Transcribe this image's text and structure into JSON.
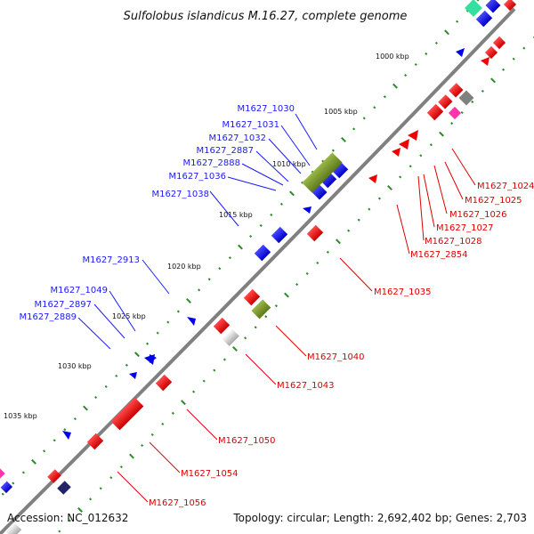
{
  "title": "Sulfolobus islandicus M.16.27, complete genome",
  "footer": {
    "accession": "Accession: NC_012632",
    "summary": "Topology: circular; Length: 2,692,402 bp; Genes: 2,703"
  },
  "scale_labels": [
    "1000 kbp",
    "1005 kbp",
    "1010 kbp",
    "1015 kbp",
    "1020 kbp",
    "1025 kbp",
    "1030 kbp",
    "1035 kbp"
  ],
  "gene_labels_outer": [
    "M1627_1030",
    "M1627_1031",
    "M1627_1032",
    "M1627_2887",
    "M1627_2888",
    "M1627_1036",
    "M1627_1038",
    "M1627_2913",
    "M1627_1049",
    "M1627_2897",
    "M1627_2889"
  ],
  "gene_labels_inner": [
    "M1627_1024",
    "M1627_1025",
    "M1627_1026",
    "M1627_1027",
    "M1627_1028",
    "M1627_2854",
    "M1627_1035",
    "M1627_1040",
    "M1627_1043",
    "M1627_1050",
    "M1627_1054",
    "M1627_1056"
  ],
  "colors": {
    "backbone": "#808080",
    "gene_forward": "#0000ee",
    "gene_reverse": "#ee0000",
    "highlight_gene": "#7a9a2a",
    "other_gene": "#a0a0a0",
    "tick_major": "#2a8a2a",
    "label_outer": "#1a1aff",
    "label_inner": "#dd0000"
  }
}
